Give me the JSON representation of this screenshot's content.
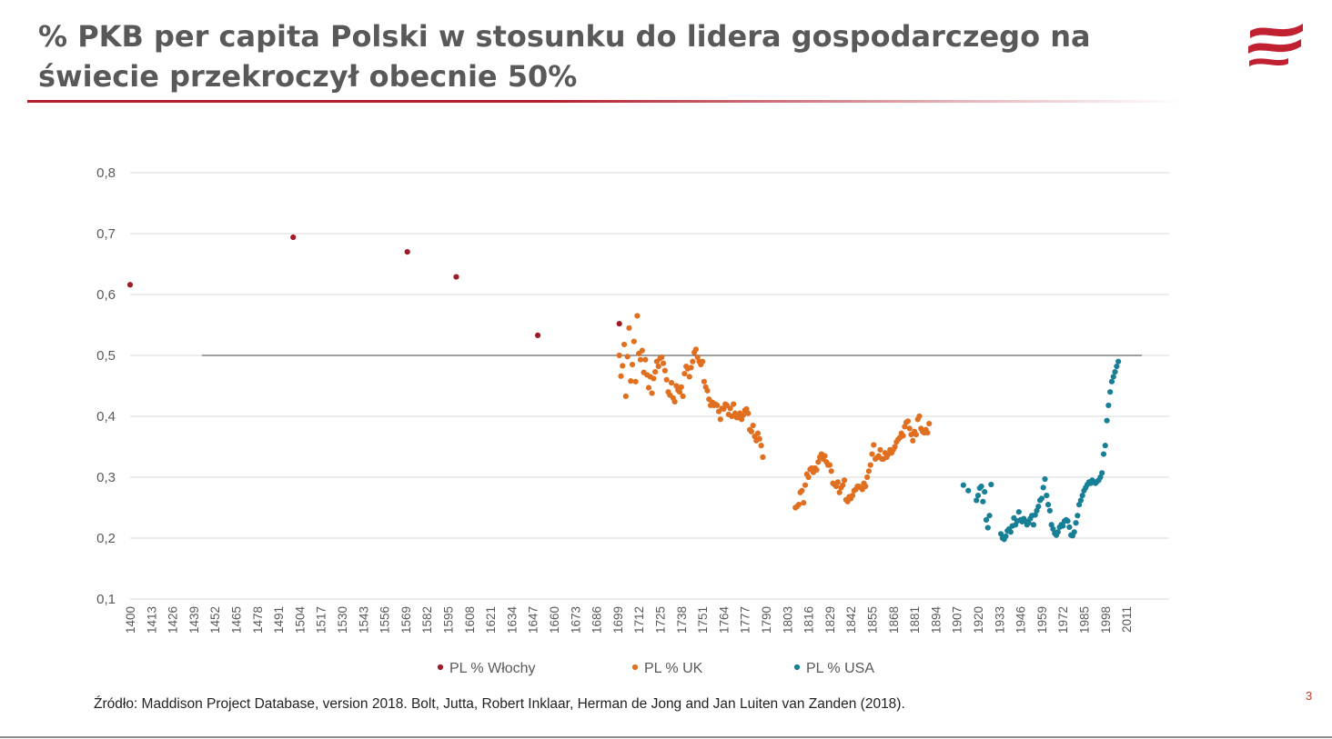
{
  "slide": {
    "title": "% PKB per capita Polski w stosunku do lidera gospodarczego na świecie przekroczył obecnie 50%",
    "source": "Źródło: Maddison Project Database, version 2018. Bolt, Jutta, Robert Inklaar, Herman de Jong and Jan Luiten van Zanden (2018).",
    "page_number": "3",
    "logo_icon": "red-flag-wave-logo",
    "accent_color": "#b11f2e"
  },
  "chart_data": {
    "type": "scatter",
    "title": "",
    "xlabel": "",
    "ylabel": "",
    "xlim": [
      1400,
      2016
    ],
    "ylim": [
      0.1,
      0.8
    ],
    "y_ticks": [
      0.1,
      0.2,
      0.3,
      0.4,
      0.5,
      0.6,
      0.7,
      0.8
    ],
    "y_tick_labels": [
      "0,1",
      "0,2",
      "0,3",
      "0,4",
      "0,5",
      "0,6",
      "0,7",
      "0,8"
    ],
    "x_tick_labels": [
      "1400",
      "1413",
      "1426",
      "1439",
      "1452",
      "1465",
      "1478",
      "1491",
      "1504",
      "1517",
      "1530",
      "1543",
      "1556",
      "1569",
      "1582",
      "1595",
      "1608",
      "1621",
      "1634",
      "1647",
      "1660",
      "1673",
      "1686",
      "1699",
      "1712",
      "1725",
      "1738",
      "1751",
      "1764",
      "1777",
      "1790",
      "1803",
      "1816",
      "1829",
      "1842",
      "1855",
      "1868",
      "1881",
      "1894",
      "1907",
      "1920",
      "1933",
      "1946",
      "1959",
      "1972",
      "1985",
      "1998",
      "2011"
    ],
    "gridlines": true,
    "legend_position": "bottom",
    "reference_line": {
      "y": 0.5,
      "x_from": 1444,
      "x_to": 2016
    },
    "series": [
      {
        "name": "PL % Włochy",
        "color": "#a01b28",
        "points": [
          [
            1400,
            0.616
          ],
          [
            1500,
            0.694
          ],
          [
            1570,
            0.67
          ],
          [
            1600,
            0.629
          ],
          [
            1650,
            0.533
          ],
          [
            1700,
            0.552
          ]
        ]
      },
      {
        "name": "PL % UK",
        "color": "#e07020",
        "points": [
          [
            1700,
            0.5
          ],
          [
            1701,
            0.466
          ],
          [
            1702,
            0.483
          ],
          [
            1703,
            0.518
          ],
          [
            1704,
            0.433
          ],
          [
            1705,
            0.498
          ],
          [
            1706,
            0.545
          ],
          [
            1707,
            0.458
          ],
          [
            1708,
            0.485
          ],
          [
            1709,
            0.523
          ],
          [
            1710,
            0.457
          ],
          [
            1711,
            0.565
          ],
          [
            1712,
            0.503
          ],
          [
            1713,
            0.493
          ],
          [
            1714,
            0.508
          ],
          [
            1715,
            0.472
          ],
          [
            1716,
            0.493
          ],
          [
            1717,
            0.468
          ],
          [
            1718,
            0.447
          ],
          [
            1719,
            0.465
          ],
          [
            1720,
            0.438
          ],
          [
            1721,
            0.462
          ],
          [
            1722,
            0.473
          ],
          [
            1723,
            0.49
          ],
          [
            1724,
            0.482
          ],
          [
            1725,
            0.495
          ],
          [
            1726,
            0.497
          ],
          [
            1727,
            0.487
          ],
          [
            1728,
            0.475
          ],
          [
            1729,
            0.46
          ],
          [
            1730,
            0.44
          ],
          [
            1731,
            0.435
          ],
          [
            1732,
            0.455
          ],
          [
            1733,
            0.43
          ],
          [
            1734,
            0.424
          ],
          [
            1735,
            0.45
          ],
          [
            1736,
            0.443
          ],
          [
            1737,
            0.44
          ],
          [
            1738,
            0.448
          ],
          [
            1739,
            0.433
          ],
          [
            1740,
            0.47
          ],
          [
            1741,
            0.482
          ],
          [
            1742,
            0.478
          ],
          [
            1743,
            0.465
          ],
          [
            1744,
            0.48
          ],
          [
            1745,
            0.49
          ],
          [
            1746,
            0.505
          ],
          [
            1747,
            0.51
          ],
          [
            1748,
            0.497
          ],
          [
            1749,
            0.49
          ],
          [
            1750,
            0.485
          ],
          [
            1751,
            0.49
          ],
          [
            1752,
            0.457
          ],
          [
            1753,
            0.448
          ],
          [
            1754,
            0.442
          ],
          [
            1755,
            0.428
          ],
          [
            1756,
            0.418
          ],
          [
            1757,
            0.423
          ],
          [
            1758,
            0.418
          ],
          [
            1759,
            0.42
          ],
          [
            1760,
            0.418
          ],
          [
            1761,
            0.408
          ],
          [
            1762,
            0.395
          ],
          [
            1763,
            0.413
          ],
          [
            1764,
            0.412
          ],
          [
            1765,
            0.42
          ],
          [
            1766,
            0.418
          ],
          [
            1767,
            0.403
          ],
          [
            1768,
            0.413
          ],
          [
            1769,
            0.4
          ],
          [
            1770,
            0.42
          ],
          [
            1771,
            0.405
          ],
          [
            1772,
            0.398
          ],
          [
            1773,
            0.398
          ],
          [
            1774,
            0.405
          ],
          [
            1775,
            0.395
          ],
          [
            1776,
            0.402
          ],
          [
            1777,
            0.41
          ],
          [
            1778,
            0.412
          ],
          [
            1779,
            0.405
          ],
          [
            1780,
            0.378
          ],
          [
            1781,
            0.375
          ],
          [
            1782,
            0.385
          ],
          [
            1783,
            0.367
          ],
          [
            1784,
            0.36
          ],
          [
            1785,
            0.372
          ],
          [
            1786,
            0.363
          ],
          [
            1787,
            0.352
          ],
          [
            1788,
            0.333
          ],
          [
            1808,
            0.25
          ],
          [
            1809,
            0.252
          ],
          [
            1810,
            0.255
          ],
          [
            1811,
            0.275
          ],
          [
            1812,
            0.278
          ],
          [
            1813,
            0.258
          ],
          [
            1814,
            0.287
          ],
          [
            1815,
            0.305
          ],
          [
            1816,
            0.3
          ],
          [
            1817,
            0.313
          ],
          [
            1818,
            0.315
          ],
          [
            1819,
            0.308
          ],
          [
            1820,
            0.315
          ],
          [
            1821,
            0.312
          ],
          [
            1822,
            0.325
          ],
          [
            1823,
            0.333
          ],
          [
            1824,
            0.338
          ],
          [
            1825,
            0.33
          ],
          [
            1826,
            0.335
          ],
          [
            1827,
            0.325
          ],
          [
            1828,
            0.32
          ],
          [
            1829,
            0.32
          ],
          [
            1830,
            0.31
          ],
          [
            1831,
            0.29
          ],
          [
            1832,
            0.288
          ],
          [
            1833,
            0.285
          ],
          [
            1834,
            0.292
          ],
          [
            1835,
            0.275
          ],
          [
            1836,
            0.283
          ],
          [
            1837,
            0.287
          ],
          [
            1838,
            0.295
          ],
          [
            1839,
            0.263
          ],
          [
            1840,
            0.26
          ],
          [
            1841,
            0.268
          ],
          [
            1842,
            0.265
          ],
          [
            1843,
            0.27
          ],
          [
            1844,
            0.278
          ],
          [
            1845,
            0.28
          ],
          [
            1846,
            0.285
          ],
          [
            1847,
            0.285
          ],
          [
            1848,
            0.283
          ],
          [
            1849,
            0.28
          ],
          [
            1850,
            0.29
          ],
          [
            1851,
            0.285
          ],
          [
            1852,
            0.3
          ],
          [
            1853,
            0.31
          ],
          [
            1854,
            0.32
          ],
          [
            1855,
            0.338
          ],
          [
            1856,
            0.353
          ],
          [
            1857,
            0.33
          ],
          [
            1858,
            0.332
          ],
          [
            1859,
            0.335
          ],
          [
            1860,
            0.345
          ],
          [
            1861,
            0.33
          ],
          [
            1862,
            0.33
          ],
          [
            1863,
            0.34
          ],
          [
            1864,
            0.333
          ],
          [
            1865,
            0.338
          ],
          [
            1866,
            0.345
          ],
          [
            1867,
            0.34
          ],
          [
            1868,
            0.345
          ],
          [
            1869,
            0.35
          ],
          [
            1870,
            0.358
          ],
          [
            1871,
            0.362
          ],
          [
            1872,
            0.365
          ],
          [
            1873,
            0.372
          ],
          [
            1874,
            0.368
          ],
          [
            1875,
            0.383
          ],
          [
            1876,
            0.39
          ],
          [
            1877,
            0.392
          ],
          [
            1878,
            0.38
          ],
          [
            1879,
            0.37
          ],
          [
            1880,
            0.36
          ],
          [
            1881,
            0.375
          ],
          [
            1882,
            0.37
          ],
          [
            1883,
            0.395
          ],
          [
            1884,
            0.4
          ],
          [
            1885,
            0.38
          ],
          [
            1886,
            0.375
          ],
          [
            1887,
            0.373
          ],
          [
            1888,
            0.378
          ],
          [
            1889,
            0.373
          ],
          [
            1890,
            0.388
          ]
        ]
      },
      {
        "name": "PL % USA",
        "color": "#177f96",
        "points": [
          [
            1911,
            0.287
          ],
          [
            1914,
            0.278
          ],
          [
            1919,
            0.262
          ],
          [
            1920,
            0.27
          ],
          [
            1921,
            0.282
          ],
          [
            1922,
            0.285
          ],
          [
            1923,
            0.26
          ],
          [
            1924,
            0.276
          ],
          [
            1925,
            0.23
          ],
          [
            1926,
            0.217
          ],
          [
            1927,
            0.237
          ],
          [
            1928,
            0.288
          ],
          [
            1934,
            0.207
          ],
          [
            1935,
            0.2
          ],
          [
            1936,
            0.198
          ],
          [
            1937,
            0.203
          ],
          [
            1938,
            0.212
          ],
          [
            1939,
            0.215
          ],
          [
            1940,
            0.21
          ],
          [
            1941,
            0.22
          ],
          [
            1942,
            0.233
          ],
          [
            1943,
            0.222
          ],
          [
            1944,
            0.228
          ],
          [
            1945,
            0.243
          ],
          [
            1946,
            0.23
          ],
          [
            1947,
            0.227
          ],
          [
            1948,
            0.232
          ],
          [
            1949,
            0.228
          ],
          [
            1950,
            0.222
          ],
          [
            1951,
            0.225
          ],
          [
            1952,
            0.232
          ],
          [
            1953,
            0.237
          ],
          [
            1954,
            0.222
          ],
          [
            1955,
            0.238
          ],
          [
            1956,
            0.245
          ],
          [
            1957,
            0.252
          ],
          [
            1958,
            0.262
          ],
          [
            1959,
            0.265
          ],
          [
            1960,
            0.283
          ],
          [
            1961,
            0.297
          ],
          [
            1962,
            0.27
          ],
          [
            1963,
            0.255
          ],
          [
            1964,
            0.245
          ],
          [
            1965,
            0.222
          ],
          [
            1966,
            0.215
          ],
          [
            1967,
            0.208
          ],
          [
            1968,
            0.205
          ],
          [
            1969,
            0.21
          ],
          [
            1970,
            0.218
          ],
          [
            1971,
            0.222
          ],
          [
            1972,
            0.22
          ],
          [
            1973,
            0.228
          ],
          [
            1974,
            0.23
          ],
          [
            1975,
            0.228
          ],
          [
            1976,
            0.218
          ],
          [
            1977,
            0.205
          ],
          [
            1978,
            0.204
          ],
          [
            1979,
            0.21
          ],
          [
            1980,
            0.225
          ],
          [
            1981,
            0.237
          ],
          [
            1982,
            0.255
          ],
          [
            1983,
            0.262
          ],
          [
            1984,
            0.27
          ],
          [
            1985,
            0.278
          ],
          [
            1986,
            0.283
          ],
          [
            1987,
            0.288
          ],
          [
            1988,
            0.292
          ],
          [
            1989,
            0.29
          ],
          [
            1990,
            0.295
          ],
          [
            1991,
            0.292
          ],
          [
            1992,
            0.29
          ],
          [
            1993,
            0.293
          ],
          [
            1994,
            0.295
          ],
          [
            1995,
            0.3
          ],
          [
            1996,
            0.307
          ],
          [
            1997,
            0.338
          ],
          [
            1998,
            0.352
          ],
          [
            1999,
            0.393
          ],
          [
            2000,
            0.418
          ],
          [
            2001,
            0.44
          ],
          [
            2002,
            0.457
          ],
          [
            2003,
            0.465
          ],
          [
            2004,
            0.473
          ],
          [
            2005,
            0.482
          ],
          [
            2006,
            0.49
          ]
        ]
      }
    ]
  }
}
